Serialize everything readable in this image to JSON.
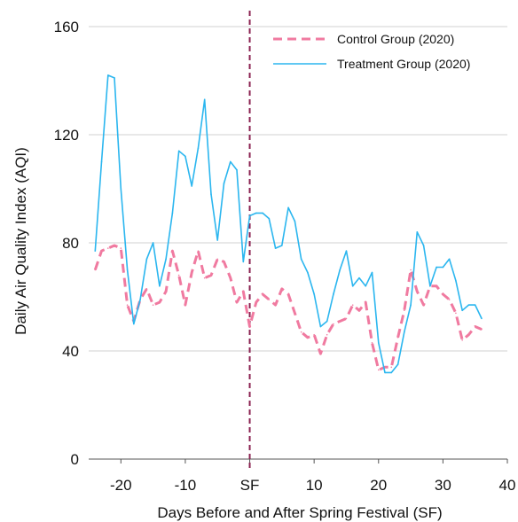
{
  "chart_data": {
    "type": "line",
    "xlabel": "Days Before and After Spring Festival (SF)",
    "ylabel": "Daily Air Quality Index (AQI)",
    "xlim": [
      -25,
      40
    ],
    "ylim": [
      0,
      160
    ],
    "x_ticks": [
      {
        "value": -20,
        "label": "-20"
      },
      {
        "value": -10,
        "label": "-10"
      },
      {
        "value": 0,
        "label": "SF"
      },
      {
        "value": 10,
        "label": "10"
      },
      {
        "value": 20,
        "label": "20"
      },
      {
        "value": 30,
        "label": "30"
      },
      {
        "value": 40,
        "label": "40"
      }
    ],
    "y_ticks": [
      {
        "value": 0,
        "label": "0"
      },
      {
        "value": 40,
        "label": "40"
      },
      {
        "value": 80,
        "label": "80"
      },
      {
        "value": 120,
        "label": "120"
      },
      {
        "value": 160,
        "label": "160"
      }
    ],
    "grid": "horizontal",
    "legend_position": "top-right",
    "vline": {
      "x": 0,
      "color": "#8b2252",
      "style": "dashed"
    },
    "series": [
      {
        "name": "Control Group (2020)",
        "color": "#f07aa0",
        "style": "dashed",
        "x": [
          -24,
          -23,
          -22,
          -21,
          -20,
          -19,
          -18,
          -17,
          -16,
          -15,
          -14,
          -13,
          -12,
          -11,
          -10,
          -9,
          -8,
          -7,
          -6,
          -5,
          -4,
          -3,
          -2,
          -1,
          0,
          1,
          2,
          3,
          4,
          5,
          6,
          7,
          8,
          9,
          10,
          11,
          12,
          13,
          14,
          15,
          16,
          17,
          18,
          19,
          20,
          21,
          22,
          23,
          24,
          25,
          26,
          27,
          28,
          29,
          30,
          31,
          32,
          33,
          34,
          35,
          36
        ],
        "y": [
          70,
          77,
          78,
          79,
          78,
          57,
          51,
          59,
          63,
          57,
          58,
          62,
          77,
          68,
          57,
          69,
          77,
          67,
          68,
          74,
          73,
          67,
          58,
          62,
          49,
          58,
          61,
          59,
          57,
          63,
          61,
          54,
          47,
          45,
          46,
          39,
          46,
          50,
          51,
          52,
          57,
          55,
          58,
          43,
          33,
          34,
          34,
          45,
          55,
          70,
          62,
          57,
          64,
          64,
          61,
          59,
          54,
          44,
          46,
          49,
          48
        ]
      },
      {
        "name": "Treatment Group (2020)",
        "color": "#2bb6ef",
        "style": "solid",
        "x": [
          -24,
          -23,
          -22,
          -21,
          -20,
          -19,
          -18,
          -17,
          -16,
          -15,
          -14,
          -13,
          -12,
          -11,
          -10,
          -9,
          -8,
          -7,
          -6,
          -5,
          -4,
          -3,
          -2,
          -1,
          0,
          1,
          2,
          3,
          4,
          5,
          6,
          7,
          8,
          9,
          10,
          11,
          12,
          13,
          14,
          15,
          16,
          17,
          18,
          19,
          20,
          21,
          22,
          23,
          24,
          25,
          26,
          27,
          28,
          29,
          30,
          31,
          32,
          33,
          34,
          35,
          36
        ],
        "y": [
          77,
          110,
          142,
          141,
          100,
          70,
          50,
          59,
          74,
          80,
          64,
          74,
          91,
          114,
          112,
          101,
          115,
          133,
          98,
          81,
          102,
          110,
          107,
          73,
          90,
          91,
          91,
          89,
          78,
          79,
          93,
          88,
          74,
          69,
          61,
          49,
          51,
          61,
          70,
          77,
          64,
          67,
          64,
          69,
          43,
          32,
          32,
          35,
          47,
          57,
          84,
          79,
          64,
          71,
          71,
          74,
          66,
          55,
          57,
          57,
          52
        ]
      }
    ]
  }
}
